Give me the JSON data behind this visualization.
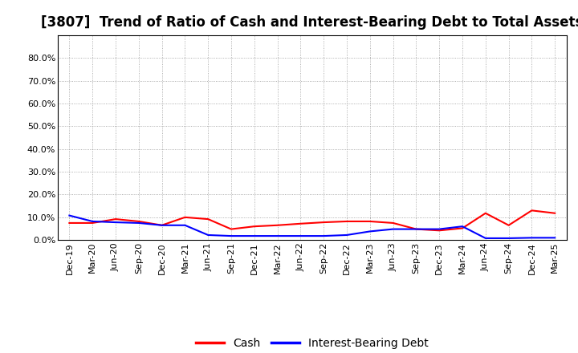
{
  "title": "[3807]  Trend of Ratio of Cash and Interest-Bearing Debt to Total Assets",
  "ylim": [
    0.0,
    0.9
  ],
  "yticks": [
    0.0,
    0.1,
    0.2,
    0.3,
    0.4,
    0.5,
    0.6,
    0.7,
    0.8
  ],
  "x_labels": [
    "Dec-19",
    "Mar-20",
    "Jun-20",
    "Sep-20",
    "Dec-20",
    "Mar-21",
    "Jun-21",
    "Sep-21",
    "Dec-21",
    "Mar-22",
    "Jun-22",
    "Sep-22",
    "Dec-22",
    "Mar-23",
    "Jun-23",
    "Sep-23",
    "Dec-23",
    "Mar-24",
    "Jun-24",
    "Sep-24",
    "Dec-24",
    "Mar-25"
  ],
  "cash": [
    0.075,
    0.075,
    0.092,
    0.082,
    0.065,
    0.1,
    0.092,
    0.048,
    0.06,
    0.065,
    0.072,
    0.078,
    0.082,
    0.082,
    0.075,
    0.048,
    0.042,
    0.052,
    0.118,
    0.065,
    0.13,
    0.118
  ],
  "interest_bearing_debt": [
    0.108,
    0.082,
    0.078,
    0.075,
    0.065,
    0.065,
    0.022,
    0.018,
    0.018,
    0.018,
    0.018,
    0.018,
    0.022,
    0.038,
    0.048,
    0.048,
    0.048,
    0.06,
    0.008,
    0.008,
    0.01,
    0.01
  ],
  "cash_color": "#ff0000",
  "debt_color": "#0000ff",
  "background_color": "#ffffff",
  "grid_color": "#999999",
  "title_fontsize": 12,
  "tick_fontsize": 8,
  "legend_fontsize": 10
}
